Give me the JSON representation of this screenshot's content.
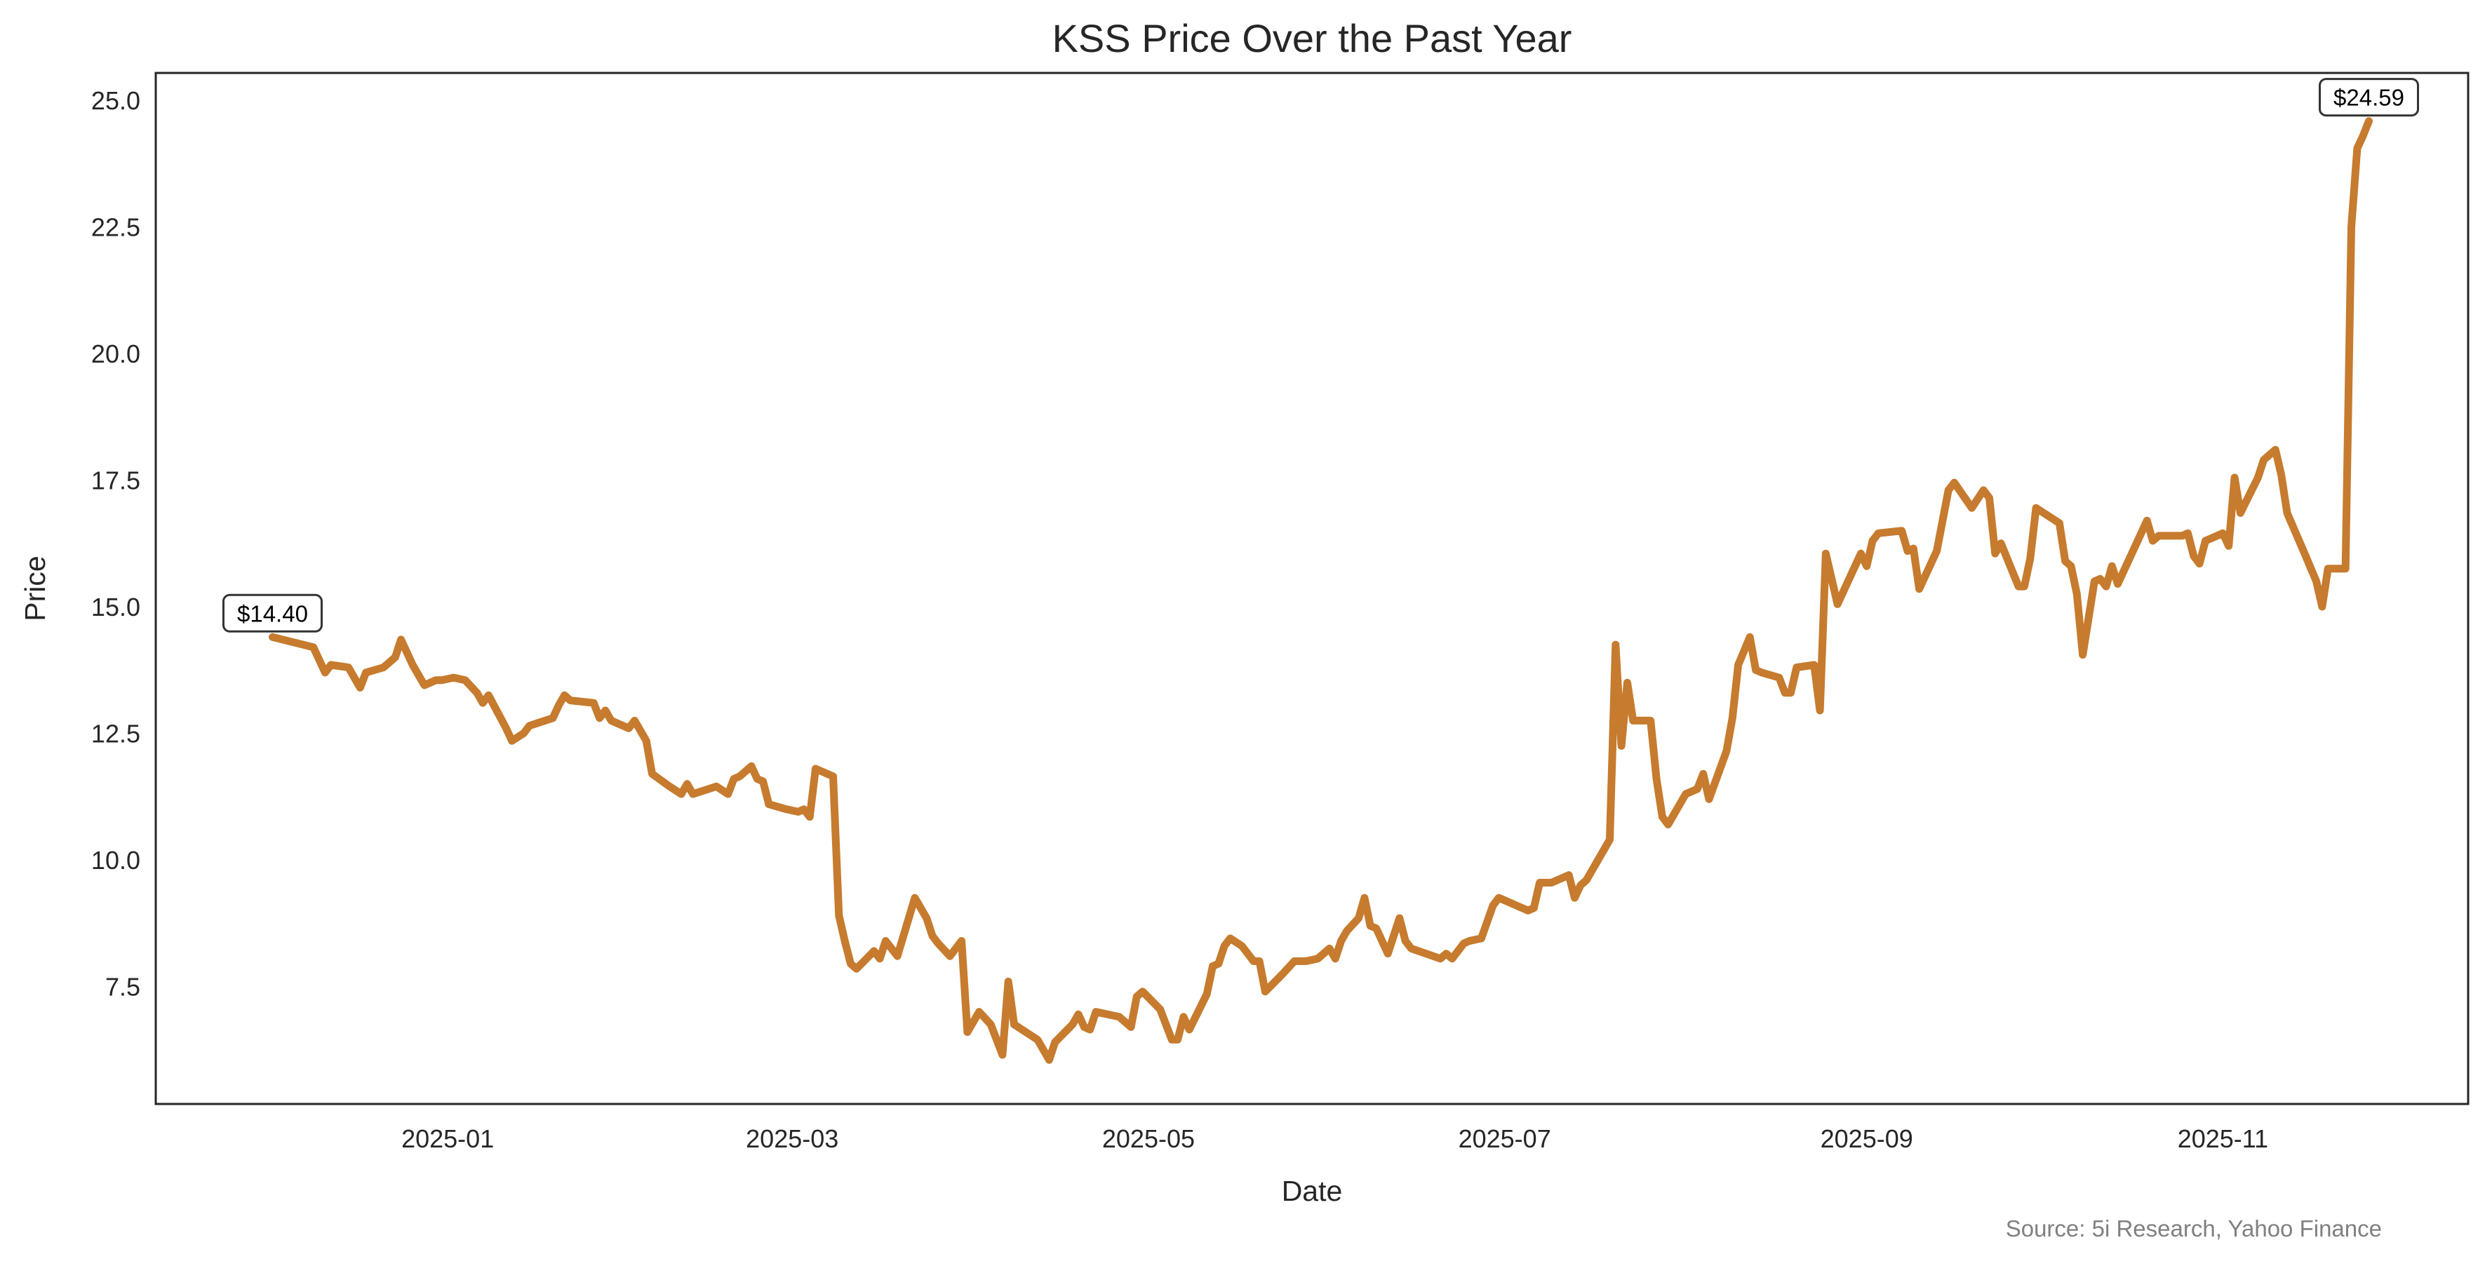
{
  "chart_data": {
    "type": "line",
    "title": "KSS Price Over the Past Year",
    "xlabel": "Date",
    "ylabel": "Price",
    "source": "Source: 5i Research, Yahoo Finance",
    "line_color": "#C67B2E",
    "grid": false,
    "xlim": [
      "2024-11-12",
      "2025-12-13"
    ],
    "ylim": [
      5.18,
      25.54
    ],
    "x_ticks": [
      "2025-01",
      "2025-03",
      "2025-05",
      "2025-07",
      "2025-09",
      "2025-11"
    ],
    "y_ticks": [
      "7.5",
      "10.0",
      "12.5",
      "15.0",
      "17.5",
      "20.0",
      "22.5",
      "25.0"
    ],
    "annotations": [
      {
        "label": "$14.40",
        "date": "2024-12-02",
        "value": 14.4
      },
      {
        "label": "$24.59",
        "date": "2025-11-26",
        "value": 24.59
      }
    ],
    "series": [
      {
        "name": "KSS",
        "points": [
          [
            "2024-12-02",
            14.4
          ],
          [
            "2024-12-09",
            14.2
          ],
          [
            "2024-12-11",
            13.7
          ],
          [
            "2024-12-12",
            13.85
          ],
          [
            "2024-12-15",
            13.8
          ],
          [
            "2024-12-17",
            13.4
          ],
          [
            "2024-12-18",
            13.7
          ],
          [
            "2024-12-21",
            13.8
          ],
          [
            "2024-12-23",
            14.0
          ],
          [
            "2024-12-24",
            14.35
          ],
          [
            "2024-12-26",
            13.85
          ],
          [
            "2024-12-28",
            13.45
          ],
          [
            "2024-12-30",
            13.55
          ],
          [
            "2024-12-31",
            13.55
          ],
          [
            "2025-01-02",
            13.6
          ],
          [
            "2025-01-04",
            13.55
          ],
          [
            "2025-01-06",
            13.3
          ],
          [
            "2025-01-07",
            13.1
          ],
          [
            "2025-01-08",
            13.25
          ],
          [
            "2025-01-11",
            12.6
          ],
          [
            "2025-01-12",
            12.35
          ],
          [
            "2025-01-14",
            12.5
          ],
          [
            "2025-01-15",
            12.65
          ],
          [
            "2025-01-19",
            12.8
          ],
          [
            "2025-01-20",
            13.05
          ],
          [
            "2025-01-21",
            13.25
          ],
          [
            "2025-01-22",
            13.15
          ],
          [
            "2025-01-26",
            13.1
          ],
          [
            "2025-01-27",
            12.8
          ],
          [
            "2025-01-28",
            12.95
          ],
          [
            "2025-01-29",
            12.75
          ],
          [
            "2025-02-01",
            12.6
          ],
          [
            "2025-02-02",
            12.75
          ],
          [
            "2025-02-04",
            12.35
          ],
          [
            "2025-02-05",
            11.7
          ],
          [
            "2025-02-08",
            11.45
          ],
          [
            "2025-02-10",
            11.3
          ],
          [
            "2025-02-11",
            11.5
          ],
          [
            "2025-02-12",
            11.3
          ],
          [
            "2025-02-16",
            11.45
          ],
          [
            "2025-02-18",
            11.3
          ],
          [
            "2025-02-19",
            11.6
          ],
          [
            "2025-02-20",
            11.65
          ],
          [
            "2025-02-22",
            11.85
          ],
          [
            "2025-02-23",
            11.6
          ],
          [
            "2025-02-24",
            11.55
          ],
          [
            "2025-02-25",
            11.1
          ],
          [
            "2025-02-28",
            11.0
          ],
          [
            "2025-03-02",
            10.95
          ],
          [
            "2025-03-03",
            11.0
          ],
          [
            "2025-03-04",
            10.85
          ],
          [
            "2025-03-05",
            11.8
          ],
          [
            "2025-03-08",
            11.65
          ],
          [
            "2025-03-09",
            8.9
          ],
          [
            "2025-03-10",
            8.4
          ],
          [
            "2025-03-11",
            7.95
          ],
          [
            "2025-03-12",
            7.85
          ],
          [
            "2025-03-15",
            8.2
          ],
          [
            "2025-03-16",
            8.05
          ],
          [
            "2025-03-17",
            8.4
          ],
          [
            "2025-03-19",
            8.1
          ],
          [
            "2025-03-22",
            9.25
          ],
          [
            "2025-03-24",
            8.85
          ],
          [
            "2025-03-25",
            8.5
          ],
          [
            "2025-03-26",
            8.35
          ],
          [
            "2025-03-28",
            8.1
          ],
          [
            "2025-03-30",
            8.4
          ],
          [
            "2025-03-31",
            6.6
          ],
          [
            "2025-04-02",
            7.0
          ],
          [
            "2025-04-04",
            6.75
          ],
          [
            "2025-04-06",
            6.15
          ],
          [
            "2025-04-07",
            7.6
          ],
          [
            "2025-04-08",
            6.75
          ],
          [
            "2025-04-12",
            6.45
          ],
          [
            "2025-04-14",
            6.05
          ],
          [
            "2025-04-15",
            6.4
          ],
          [
            "2025-04-18",
            6.75
          ],
          [
            "2025-04-19",
            6.95
          ],
          [
            "2025-04-20",
            6.7
          ],
          [
            "2025-04-21",
            6.65
          ],
          [
            "2025-04-22",
            7.0
          ],
          [
            "2025-04-26",
            6.9
          ],
          [
            "2025-04-28",
            6.7
          ],
          [
            "2025-04-29",
            7.3
          ],
          [
            "2025-04-30",
            7.4
          ],
          [
            "2025-05-03",
            7.05
          ],
          [
            "2025-05-05",
            6.45
          ],
          [
            "2025-05-06",
            6.45
          ],
          [
            "2025-05-07",
            6.9
          ],
          [
            "2025-05-08",
            6.65
          ],
          [
            "2025-05-11",
            7.35
          ],
          [
            "2025-05-12",
            7.9
          ],
          [
            "2025-05-13",
            7.95
          ],
          [
            "2025-05-14",
            8.3
          ],
          [
            "2025-05-15",
            8.45
          ],
          [
            "2025-05-17",
            8.3
          ],
          [
            "2025-05-19",
            8.0
          ],
          [
            "2025-05-20",
            8.0
          ],
          [
            "2025-05-21",
            7.4
          ],
          [
            "2025-05-24",
            7.75
          ],
          [
            "2025-05-26",
            8.0
          ],
          [
            "2025-05-27",
            8.0
          ],
          [
            "2025-05-28",
            8.0
          ],
          [
            "2025-05-30",
            8.05
          ],
          [
            "2025-06-01",
            8.25
          ],
          [
            "2025-06-02",
            8.05
          ],
          [
            "2025-06-03",
            8.4
          ],
          [
            "2025-06-04",
            8.6
          ],
          [
            "2025-06-06",
            8.85
          ],
          [
            "2025-06-07",
            9.25
          ],
          [
            "2025-06-08",
            8.7
          ],
          [
            "2025-06-09",
            8.65
          ],
          [
            "2025-06-11",
            8.15
          ],
          [
            "2025-06-13",
            8.85
          ],
          [
            "2025-06-14",
            8.4
          ],
          [
            "2025-06-15",
            8.25
          ],
          [
            "2025-06-20",
            8.05
          ],
          [
            "2025-06-21",
            8.15
          ],
          [
            "2025-06-22",
            8.05
          ],
          [
            "2025-06-24",
            8.35
          ],
          [
            "2025-06-25",
            8.4
          ],
          [
            "2025-06-27",
            8.45
          ],
          [
            "2025-06-29",
            9.1
          ],
          [
            "2025-06-30",
            9.25
          ],
          [
            "2025-07-05",
            9.0
          ],
          [
            "2025-07-06",
            9.05
          ],
          [
            "2025-07-07",
            9.55
          ],
          [
            "2025-07-09",
            9.55
          ],
          [
            "2025-07-12",
            9.7
          ],
          [
            "2025-07-13",
            9.25
          ],
          [
            "2025-07-14",
            9.5
          ],
          [
            "2025-07-15",
            9.6
          ],
          [
            "2025-07-19",
            10.4
          ],
          [
            "2025-07-20",
            14.25
          ],
          [
            "2025-07-21",
            12.25
          ],
          [
            "2025-07-22",
            13.5
          ],
          [
            "2025-07-23",
            12.75
          ],
          [
            "2025-07-26",
            12.75
          ],
          [
            "2025-07-27",
            11.6
          ],
          [
            "2025-07-28",
            10.85
          ],
          [
            "2025-07-29",
            10.7
          ],
          [
            "2025-08-01",
            11.3
          ],
          [
            "2025-08-03",
            11.4
          ],
          [
            "2025-08-04",
            11.7
          ],
          [
            "2025-08-05",
            11.2
          ],
          [
            "2025-08-08",
            12.15
          ],
          [
            "2025-08-09",
            12.8
          ],
          [
            "2025-08-10",
            13.85
          ],
          [
            "2025-08-12",
            14.4
          ],
          [
            "2025-08-13",
            13.75
          ],
          [
            "2025-08-14",
            13.7
          ],
          [
            "2025-08-17",
            13.6
          ],
          [
            "2025-08-18",
            13.3
          ],
          [
            "2025-08-19",
            13.3
          ],
          [
            "2025-08-20",
            13.8
          ],
          [
            "2025-08-23",
            13.85
          ],
          [
            "2025-08-24",
            12.95
          ],
          [
            "2025-08-25",
            16.05
          ],
          [
            "2025-08-27",
            15.05
          ],
          [
            "2025-08-31",
            16.05
          ],
          [
            "2025-09-01",
            15.8
          ],
          [
            "2025-09-02",
            16.3
          ],
          [
            "2025-09-03",
            16.45
          ],
          [
            "2025-09-07",
            16.5
          ],
          [
            "2025-09-08",
            16.1
          ],
          [
            "2025-09-09",
            16.15
          ],
          [
            "2025-09-10",
            15.35
          ],
          [
            "2025-09-13",
            16.1
          ],
          [
            "2025-09-15",
            17.3
          ],
          [
            "2025-09-16",
            17.45
          ],
          [
            "2025-09-19",
            16.95
          ],
          [
            "2025-09-21",
            17.3
          ],
          [
            "2025-09-22",
            17.15
          ],
          [
            "2025-09-23",
            16.05
          ],
          [
            "2025-09-24",
            16.25
          ],
          [
            "2025-09-27",
            15.4
          ],
          [
            "2025-09-28",
            15.4
          ],
          [
            "2025-09-29",
            15.95
          ],
          [
            "2025-09-30",
            16.95
          ],
          [
            "2025-10-04",
            16.65
          ],
          [
            "2025-10-05",
            15.9
          ],
          [
            "2025-10-06",
            15.8
          ],
          [
            "2025-10-07",
            15.25
          ],
          [
            "2025-10-08",
            14.05
          ],
          [
            "2025-10-10",
            15.5
          ],
          [
            "2025-10-11",
            15.55
          ],
          [
            "2025-10-12",
            15.4
          ],
          [
            "2025-10-13",
            15.8
          ],
          [
            "2025-10-14",
            15.45
          ],
          [
            "2025-10-19",
            16.7
          ],
          [
            "2025-10-20",
            16.3
          ],
          [
            "2025-10-21",
            16.4
          ],
          [
            "2025-10-25",
            16.4
          ],
          [
            "2025-10-26",
            16.45
          ],
          [
            "2025-10-27",
            16.0
          ],
          [
            "2025-10-28",
            15.85
          ],
          [
            "2025-10-29",
            16.3
          ],
          [
            "2025-11-01",
            16.45
          ],
          [
            "2025-11-02",
            16.2
          ],
          [
            "2025-11-03",
            17.55
          ],
          [
            "2025-11-04",
            16.85
          ],
          [
            "2025-11-07",
            17.55
          ],
          [
            "2025-11-08",
            17.9
          ],
          [
            "2025-11-10",
            18.1
          ],
          [
            "2025-11-11",
            17.6
          ],
          [
            "2025-11-12",
            16.85
          ],
          [
            "2025-11-15",
            16.05
          ],
          [
            "2025-11-17",
            15.5
          ],
          [
            "2025-11-18",
            15.0
          ],
          [
            "2025-11-19",
            15.75
          ],
          [
            "2025-11-22",
            15.75
          ],
          [
            "2025-11-23",
            22.5
          ],
          [
            "2025-11-24",
            24.05
          ],
          [
            "2025-11-25",
            24.3
          ],
          [
            "2025-11-26",
            24.59
          ]
        ]
      }
    ]
  }
}
